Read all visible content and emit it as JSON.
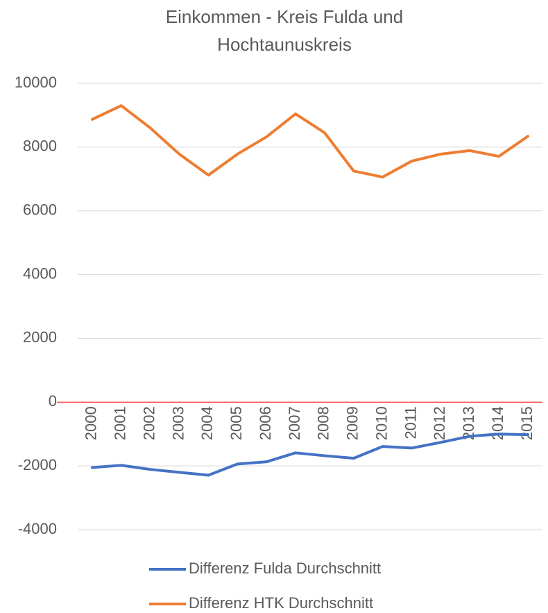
{
  "chart_data": {
    "type": "line",
    "title": "Einkommen - Kreis Fulda und Hochtaunuskreis",
    "categories": [
      "2000",
      "2001",
      "2002",
      "2003",
      "2004",
      "2005",
      "2006",
      "2007",
      "2008",
      "2009",
      "2010",
      "2011",
      "2012",
      "2013",
      "2014",
      "2015"
    ],
    "series": [
      {
        "name": "Differenz Fulda Durchschnitt",
        "color": "#4472c4",
        "values": [
          -2050,
          -1980,
          -2110,
          -2200,
          -2290,
          -1940,
          -1870,
          -1590,
          -1680,
          -1760,
          -1390,
          -1440,
          -1260,
          -1070,
          -1000,
          -1020
        ]
      },
      {
        "name": "Differenz HTK Durchschnitt",
        "color": "#ed7d31",
        "values": [
          8870,
          9300,
          8600,
          7780,
          7120,
          7780,
          8320,
          9040,
          8450,
          7250,
          7060,
          7560,
          7780,
          7890,
          7710,
          8340
        ]
      }
    ],
    "ylim": [
      -4000,
      10000
    ],
    "yticks": [
      -4000,
      -2000,
      0,
      2000,
      4000,
      6000,
      8000,
      10000
    ],
    "grid": true
  }
}
